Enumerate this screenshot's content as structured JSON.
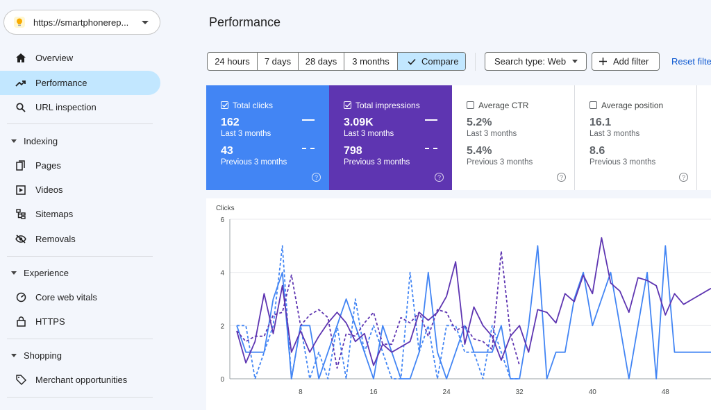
{
  "property": {
    "url": "https://smartphonerep...",
    "icon": "lightbulb-icon"
  },
  "sidebar": {
    "top": [
      {
        "label": "Overview",
        "icon": "home-icon"
      },
      {
        "label": "Performance",
        "icon": "trending-up-icon"
      },
      {
        "label": "URL inspection",
        "icon": "search-icon"
      }
    ],
    "indexing": {
      "title": "Indexing",
      "items": [
        {
          "label": "Pages",
          "icon": "pages-icon"
        },
        {
          "label": "Videos",
          "icon": "video-icon"
        },
        {
          "label": "Sitemaps",
          "icon": "sitemap-icon"
        },
        {
          "label": "Removals",
          "icon": "eye-off-icon"
        }
      ]
    },
    "experience": {
      "title": "Experience",
      "items": [
        {
          "label": "Core web vitals",
          "icon": "gauge-icon"
        },
        {
          "label": "HTTPS",
          "icon": "lock-icon"
        }
      ]
    },
    "shopping": {
      "title": "Shopping",
      "items": [
        {
          "label": "Merchant opportunities",
          "icon": "tag-icon"
        }
      ]
    }
  },
  "header": {
    "title": "Performance"
  },
  "toolbar": {
    "ranges": [
      "24 hours",
      "7 days",
      "28 days",
      "3 months",
      "Compare"
    ],
    "selected": "Compare",
    "search_type": "Search type: Web",
    "add_filter": "Add filter",
    "reset": "Reset filters"
  },
  "metrics": {
    "clicks": {
      "title": "Total clicks",
      "value": "162",
      "period": "Last 3 months",
      "prev_value": "43",
      "prev_period": "Previous 3 months",
      "checked": true,
      "color": "#4285f4"
    },
    "impressions": {
      "title": "Total impressions",
      "value": "3.09K",
      "period": "Last 3 months",
      "prev_value": "798",
      "prev_period": "Previous 3 months",
      "checked": true,
      "color": "#5e35b1"
    },
    "ctr": {
      "title": "Average CTR",
      "value": "5.2%",
      "period": "Last 3 months",
      "prev_value": "5.4%",
      "prev_period": "Previous 3 months",
      "checked": false
    },
    "position": {
      "title": "Average position",
      "value": "16.1",
      "period": "Last 3 months",
      "prev_value": "8.6",
      "prev_period": "Previous 3 months",
      "checked": false
    }
  },
  "chart_data": {
    "type": "line",
    "ylabel": "Clicks",
    "ylim": [
      0,
      6
    ],
    "yticks": [
      0,
      2,
      4,
      6
    ],
    "xticks": [
      8,
      16,
      24,
      32,
      40,
      48
    ],
    "xlim": [
      1,
      53
    ],
    "grid": true,
    "series": [
      {
        "key": "clicks_current",
        "style": "solid",
        "color": "#4285f4",
        "x": [
          1,
          2,
          3,
          4,
          5,
          6,
          7,
          8,
          9,
          10,
          11,
          12,
          13,
          14,
          15,
          16,
          17,
          18,
          19,
          20,
          21,
          22,
          23,
          24,
          25,
          26,
          27,
          28,
          29,
          30,
          31,
          32,
          33,
          34,
          35,
          36,
          37,
          38,
          39,
          40,
          41,
          42,
          43,
          44,
          45,
          46,
          47,
          48,
          49,
          50,
          51,
          52,
          53
        ],
        "y": [
          2,
          1,
          1,
          1,
          3,
          4,
          0,
          2,
          2,
          0,
          1,
          2,
          3,
          2,
          1,
          0,
          2,
          1,
          0,
          0,
          1,
          4,
          1,
          0,
          1,
          2,
          1,
          1,
          1,
          2,
          0,
          0,
          2,
          5,
          0,
          1,
          1,
          3,
          4,
          2,
          3,
          4,
          2,
          0,
          2,
          4,
          0,
          5,
          1,
          1,
          1,
          1,
          1
        ]
      },
      {
        "key": "clicks_previous",
        "style": "dashed",
        "color": "#4285f4",
        "x": [
          1,
          2,
          3,
          4,
          5,
          6,
          7,
          8,
          9,
          10,
          11,
          12,
          13,
          14,
          15,
          16,
          17,
          18,
          19,
          20,
          21,
          22,
          23,
          24,
          25,
          26,
          27,
          28,
          29,
          30,
          31,
          32
        ],
        "y": [
          2,
          2,
          0,
          1,
          2,
          5,
          0,
          2,
          0,
          1,
          0,
          2,
          0,
          3,
          1,
          2,
          1,
          0,
          0,
          4,
          1,
          2,
          0,
          2,
          2,
          1,
          1,
          0,
          2,
          1,
          0,
          0
        ]
      },
      {
        "key": "impressions_current",
        "style": "solid",
        "color": "#5e35b1",
        "x": [
          1,
          2,
          3,
          4,
          5,
          6,
          7,
          8,
          9,
          10,
          11,
          12,
          13,
          14,
          15,
          16,
          17,
          18,
          19,
          20,
          21,
          22,
          23,
          24,
          25,
          26,
          27,
          28,
          29,
          30,
          31,
          32,
          33,
          34,
          35,
          36,
          37,
          38,
          39,
          40,
          41,
          42,
          43,
          44,
          45,
          46,
          47,
          48,
          49,
          50,
          51,
          52,
          53
        ],
        "y": [
          1.8,
          0.6,
          1.4,
          3.2,
          1.7,
          3.5,
          1.0,
          1.8,
          1.0,
          1.6,
          2.1,
          2.5,
          2.1,
          1.4,
          1.7,
          0.5,
          1.3,
          1.0,
          1.2,
          1.4,
          2.5,
          2.2,
          2.5,
          3.1,
          4.4,
          1.3,
          2.7,
          2.0,
          1.6,
          0.7,
          1.6,
          2.0,
          1.0,
          2.6,
          2.5,
          2.1,
          3.2,
          2.9,
          3.9,
          3.2,
          5.3,
          3.6,
          3.3,
          2.5,
          3.8,
          3.7,
          3.5,
          2.4,
          3.2,
          2.8,
          3.0,
          3.2,
          3.4
        ]
      },
      {
        "key": "impressions_previous",
        "style": "dashed",
        "color": "#5e35b1",
        "x": [
          1,
          2,
          3,
          4,
          5,
          6,
          7,
          8,
          9,
          10,
          11,
          12,
          13,
          14,
          15,
          16,
          17,
          18,
          19,
          20,
          21,
          22,
          23,
          24,
          25,
          26,
          27,
          28,
          29,
          30,
          31,
          32
        ],
        "y": [
          1.8,
          1.4,
          1.6,
          1.6,
          2.4,
          2.5,
          3.9,
          2.0,
          2.4,
          2.6,
          2.3,
          0.4,
          1.7,
          1.6,
          2.1,
          2.5,
          1.3,
          1.3,
          2.3,
          2.1,
          2.5,
          1.6,
          2.6,
          2.5,
          1.8,
          2.0,
          1.5,
          1.4,
          1.1,
          4.8,
          1.7,
          0.5
        ]
      }
    ]
  }
}
